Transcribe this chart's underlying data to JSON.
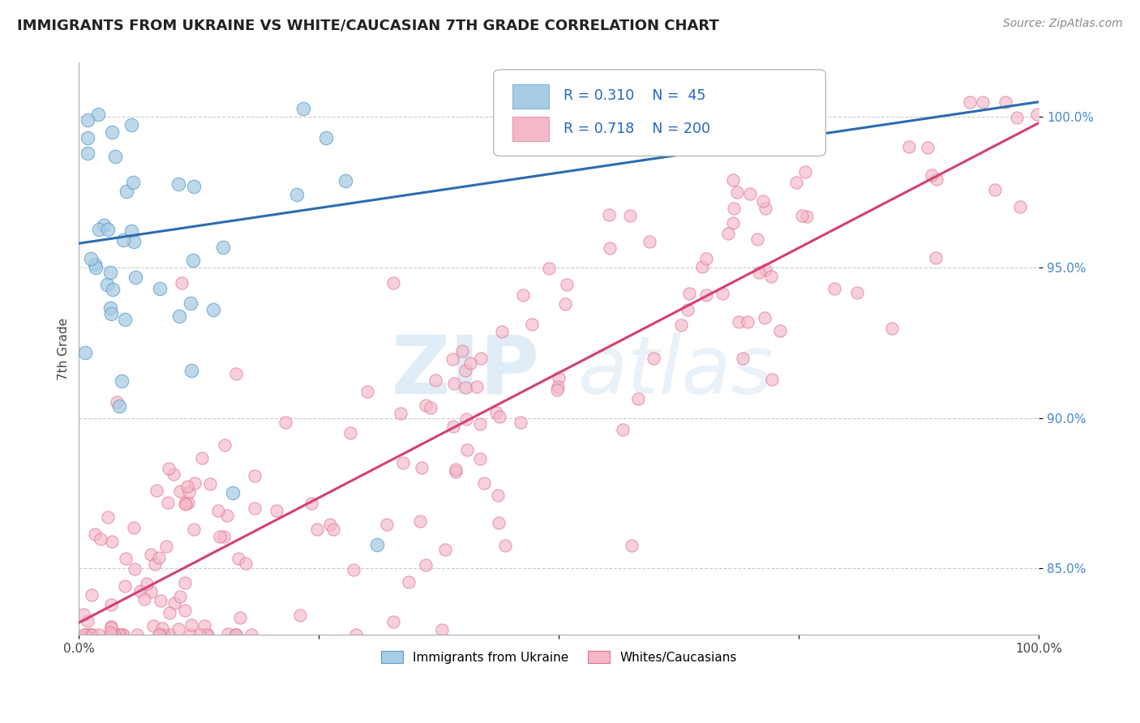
{
  "title": "IMMIGRANTS FROM UKRAINE VS WHITE/CAUCASIAN 7TH GRADE CORRELATION CHART",
  "source": "Source: ZipAtlas.com",
  "ylabel": "7th Grade",
  "legend_entries": [
    "Immigrants from Ukraine",
    "Whites/Caucasians"
  ],
  "R_ukraine": 0.31,
  "N_ukraine": 45,
  "R_white": 0.718,
  "N_white": 200,
  "blue_color": "#a8cce4",
  "pink_color": "#f4b8c8",
  "blue_edge_color": "#5a9ec9",
  "pink_edge_color": "#e07090",
  "blue_line_color": "#2b6cb0",
  "pink_line_color": "#d44070",
  "xmin": 0.0,
  "xmax": 1.0,
  "ymin": 0.828,
  "ymax": 1.018,
  "yticks": [
    0.85,
    0.9,
    0.95,
    1.0
  ],
  "ytick_labels": [
    "85.0%",
    "90.0%",
    "95.0%",
    "100.0%"
  ],
  "blue_line_x0": 0.0,
  "blue_line_y0": 0.958,
  "blue_line_x1": 1.0,
  "blue_line_y1": 1.005,
  "pink_line_x0": 0.0,
  "pink_line_y0": 0.832,
  "pink_line_x1": 1.0,
  "pink_line_y1": 0.998
}
